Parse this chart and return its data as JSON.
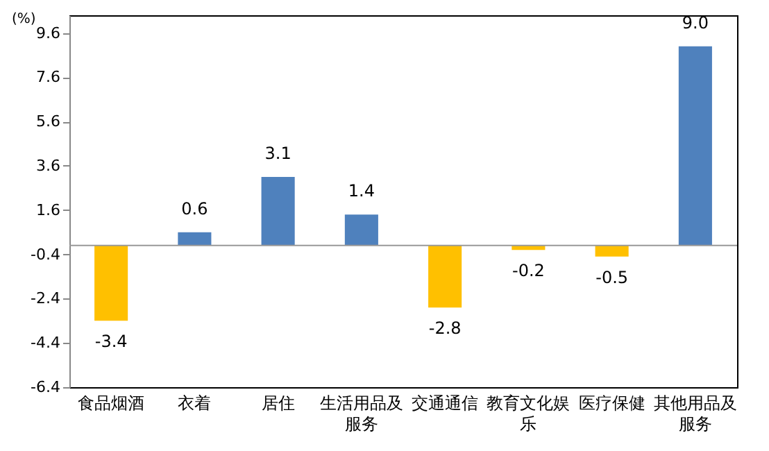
{
  "chart_data": {
    "type": "bar",
    "ylabel": "(%)",
    "categories": [
      "食品烟酒",
      "衣着",
      "居住",
      "生活用品及服务",
      "交通通信",
      "教育文化娱乐",
      "医疗保健",
      "其他用品及服务"
    ],
    "values": [
      -3.4,
      0.6,
      3.1,
      1.4,
      -2.8,
      -0.2,
      -0.5,
      9.0
    ],
    "value_labels": [
      "-3.4",
      "0.6",
      "3.1",
      "1.4",
      "-2.8",
      "-0.2",
      "-0.5",
      "9.0"
    ],
    "colors": [
      "#ffc000",
      "#4f81bd",
      "#4f81bd",
      "#4f81bd",
      "#ffc000",
      "#ffc000",
      "#ffc000",
      "#4f81bd"
    ],
    "ylim": [
      -6.4,
      10.4
    ],
    "yticks": [
      {
        "value": -6.4,
        "label": "-6.4"
      },
      {
        "value": -4.4,
        "label": "-4.4"
      },
      {
        "value": -2.4,
        "label": "-2.4"
      },
      {
        "value": -0.4,
        "label": "-0.4"
      },
      {
        "value": 1.6,
        "label": "1.6"
      },
      {
        "value": 3.6,
        "label": "3.6"
      },
      {
        "value": 5.6,
        "label": "5.6"
      },
      {
        "value": 7.6,
        "label": "7.6"
      },
      {
        "value": 9.6,
        "label": "9.6"
      }
    ],
    "ref_lines": [
      {
        "axis": "y",
        "value": 0,
        "color": "#999999"
      }
    ],
    "grid": false
  }
}
